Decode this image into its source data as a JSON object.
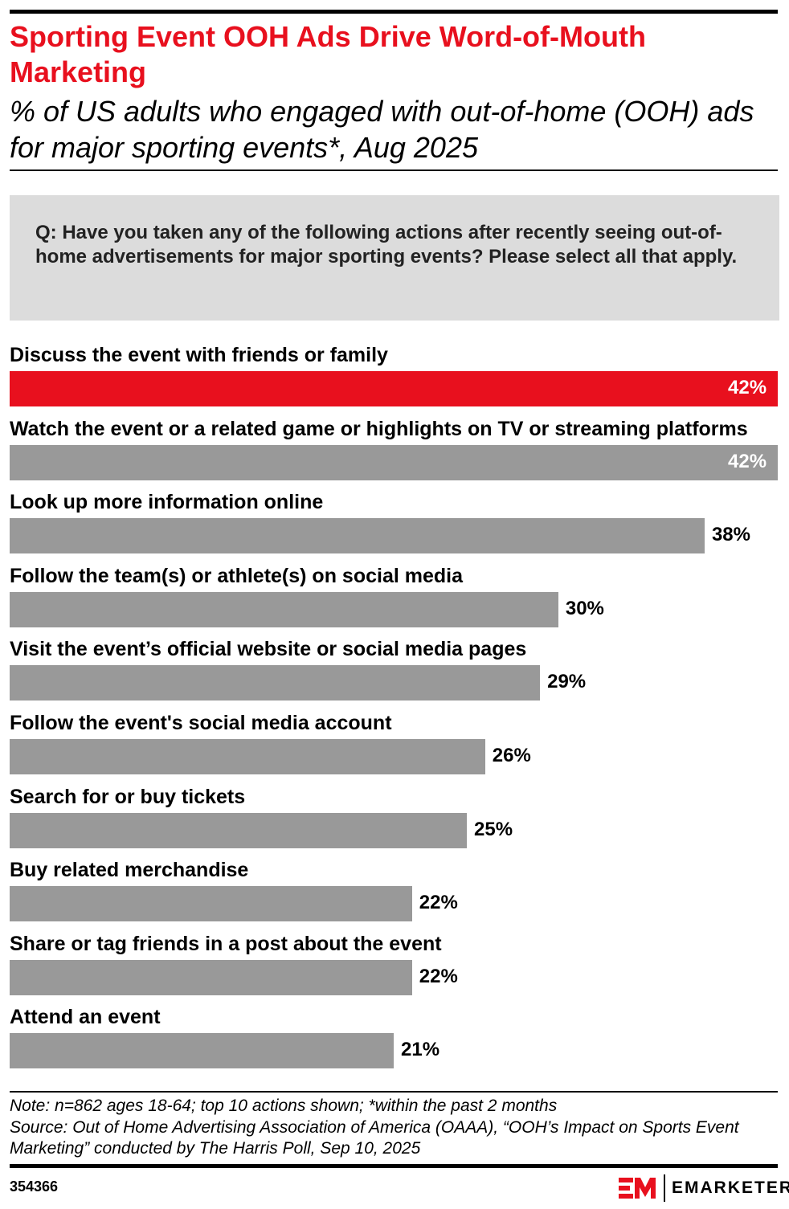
{
  "title": "Sporting Event OOH Ads Drive Word-of-Mouth Marketing",
  "subtitle": "% of US adults who engaged with out-of-home (OOH) ads for major sporting events*, Aug 2025",
  "question": "Q: Have you taken any of the following actions after recently seeing out-of-home advertisements for major sporting events? Please select all that apply.",
  "chart_data": {
    "type": "bar",
    "orientation": "horizontal",
    "categories": [
      "Discuss the event with friends or family",
      "Watch the event or a related game or highlights on TV or streaming platforms",
      "Look up more information online",
      "Follow the team(s) or athlete(s) on social media",
      "Visit the event’s official website or social media pages",
      "Follow the event's social media account",
      "Search for or buy tickets",
      "Buy related merchandise",
      "Share or tag friends in a post about the event",
      "Attend an event"
    ],
    "values": [
      42,
      42,
      38,
      30,
      29,
      26,
      25,
      22,
      22,
      21
    ],
    "labels": [
      "42%",
      "42%",
      "38%",
      "30%",
      "29%",
      "26%",
      "25%",
      "22%",
      "22%",
      "21%"
    ],
    "unit": "%",
    "xlim": [
      0,
      42
    ],
    "grid": false,
    "colors": {
      "highlight": "#e8101e",
      "default": "#999999"
    }
  },
  "note": "Note: n=862 ages 18-64; top 10 actions shown; *within the past 2 months",
  "source": "Source: Out of Home Advertising Association of America (OAAA), “OOH’s Impact on Sports Event Marketing” conducted by The Harris Poll, Sep 10, 2025",
  "chart_id": "354366",
  "brand": {
    "logo_text": "EMARKETER",
    "color": "#e8101e"
  }
}
